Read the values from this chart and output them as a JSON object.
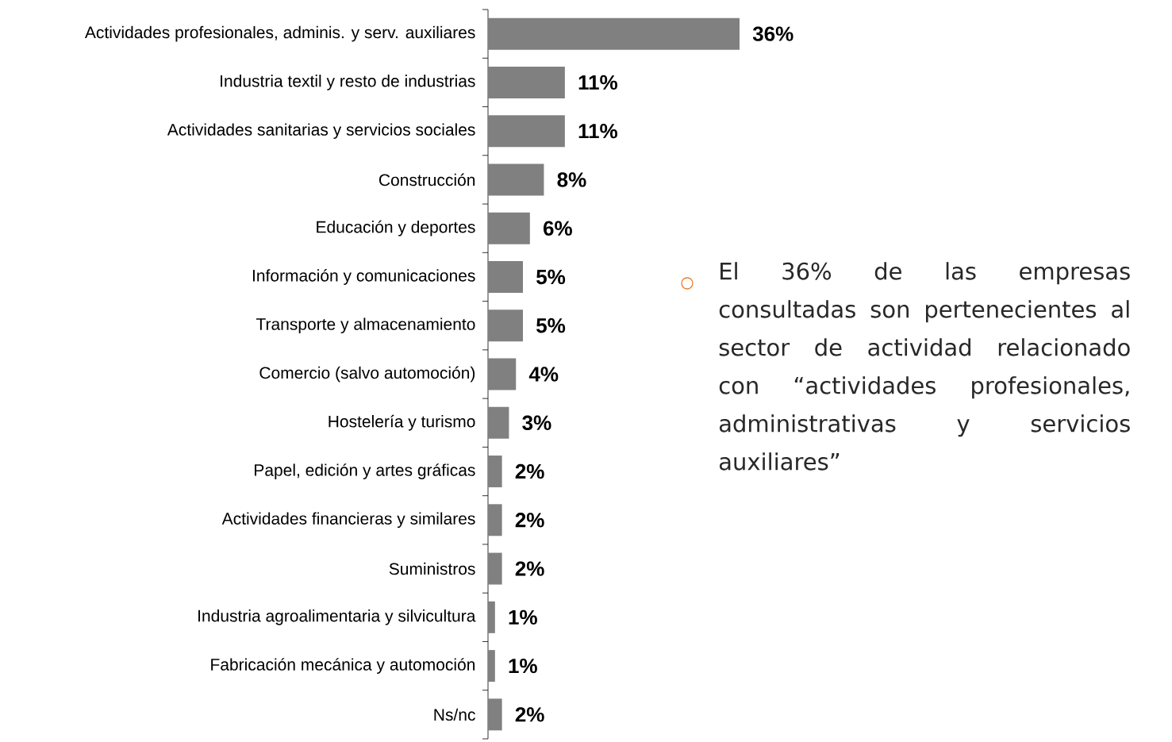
{
  "chart_data": {
    "type": "bar",
    "orientation": "horizontal",
    "categories": [
      "Actividades profesionales, adminis. y serv. auxiliares",
      "Industria textil y resto de industrias",
      "Actividades sanitarias y servicios sociales",
      "Construcción",
      "Educación y deportes",
      "Información y comunicaciones",
      "Transporte y almacenamiento",
      "Comercio (salvo automoción)",
      "Hostelería y turismo",
      "Papel, edición y artes gráficas",
      "Actividades financieras y similares",
      "Suministros",
      "Industria agroalimentaria y silvicultura",
      "Fabricación mecánica y automoción",
      "Ns/nc"
    ],
    "values": [
      36,
      11,
      11,
      8,
      6,
      5,
      5,
      4,
      3,
      2,
      2,
      2,
      1,
      1,
      2
    ],
    "value_labels": [
      "36%",
      "11%",
      "11%",
      "8%",
      "6%",
      "5%",
      "5%",
      "4%",
      "3%",
      "2%",
      "2%",
      "2%",
      "1%",
      "1%",
      "2%"
    ],
    "color": "#808080",
    "annotations": [
      "El 36% de las empresas consultadas son pertenecientes al sector de actividad relacionado con “actividades profesionales, administrativas y servicios auxiliares”"
    ]
  }
}
